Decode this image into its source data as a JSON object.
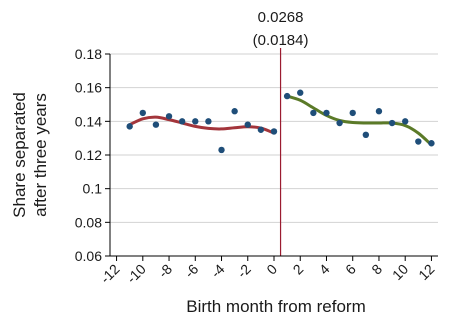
{
  "chart_data": {
    "type": "scatter",
    "title": "",
    "xlabel": "Birth month from reform",
    "ylabel_lines": [
      "Share separated",
      "after three years"
    ],
    "xlim": [
      -12.5,
      12.5
    ],
    "ylim": [
      0.06,
      0.18
    ],
    "x_ticks": [
      -12,
      -10,
      -8,
      -6,
      -4,
      -2,
      0,
      2,
      4,
      6,
      8,
      10,
      12
    ],
    "x_tick_labels": [
      "-12",
      "-10",
      "-8",
      "-6",
      "-4",
      "-2",
      "0",
      "2",
      "4",
      "6",
      "8",
      "10",
      "12"
    ],
    "y_ticks": [
      0.06,
      0.08,
      0.1,
      0.12,
      0.14,
      0.16,
      0.18
    ],
    "y_tick_labels": [
      "0.06",
      "0.08",
      "0.1",
      "0.12",
      "0.14",
      "0.16",
      "0.18"
    ],
    "grid": "horizontal",
    "cutoff_x": 0.5,
    "annotation": {
      "estimate": "0.0268",
      "std_error": "(0.0184)"
    },
    "points": [
      {
        "x": -11,
        "y": 0.137
      },
      {
        "x": -10,
        "y": 0.145
      },
      {
        "x": -9,
        "y": 0.138
      },
      {
        "x": -8,
        "y": 0.143
      },
      {
        "x": -7,
        "y": 0.14
      },
      {
        "x": -6,
        "y": 0.14
      },
      {
        "x": -5,
        "y": 0.14
      },
      {
        "x": -4,
        "y": 0.123
      },
      {
        "x": -3,
        "y": 0.146
      },
      {
        "x": -2,
        "y": 0.138
      },
      {
        "x": -1,
        "y": 0.135
      },
      {
        "x": 0,
        "y": 0.134
      },
      {
        "x": 1,
        "y": 0.155
      },
      {
        "x": 2,
        "y": 0.157
      },
      {
        "x": 3,
        "y": 0.145
      },
      {
        "x": 4,
        "y": 0.145
      },
      {
        "x": 5,
        "y": 0.139
      },
      {
        "x": 6,
        "y": 0.145
      },
      {
        "x": 7,
        "y": 0.132
      },
      {
        "x": 8,
        "y": 0.146
      },
      {
        "x": 9,
        "y": 0.139
      },
      {
        "x": 10,
        "y": 0.14
      },
      {
        "x": 11,
        "y": 0.128
      },
      {
        "x": 12,
        "y": 0.127
      }
    ],
    "fit_left": {
      "x": [
        -11,
        -10,
        -9,
        -8,
        -7,
        -6,
        -5,
        -4,
        -3,
        -2,
        -1,
        0
      ],
      "y": [
        0.138,
        0.1415,
        0.1425,
        0.141,
        0.139,
        0.137,
        0.1358,
        0.1355,
        0.1362,
        0.1368,
        0.136,
        0.133
      ]
    },
    "fit_right": {
      "x": [
        1,
        2,
        3,
        4,
        5,
        6,
        7,
        8,
        9,
        10,
        11,
        12
      ],
      "y": [
        0.155,
        0.1525,
        0.148,
        0.1435,
        0.1405,
        0.1393,
        0.139,
        0.139,
        0.139,
        0.1375,
        0.133,
        0.126
      ]
    },
    "colors": {
      "points": "#1f4e79",
      "fit_left": "#a3353b",
      "fit_right": "#5b7a28",
      "cutoff": "#9b1b30"
    }
  }
}
